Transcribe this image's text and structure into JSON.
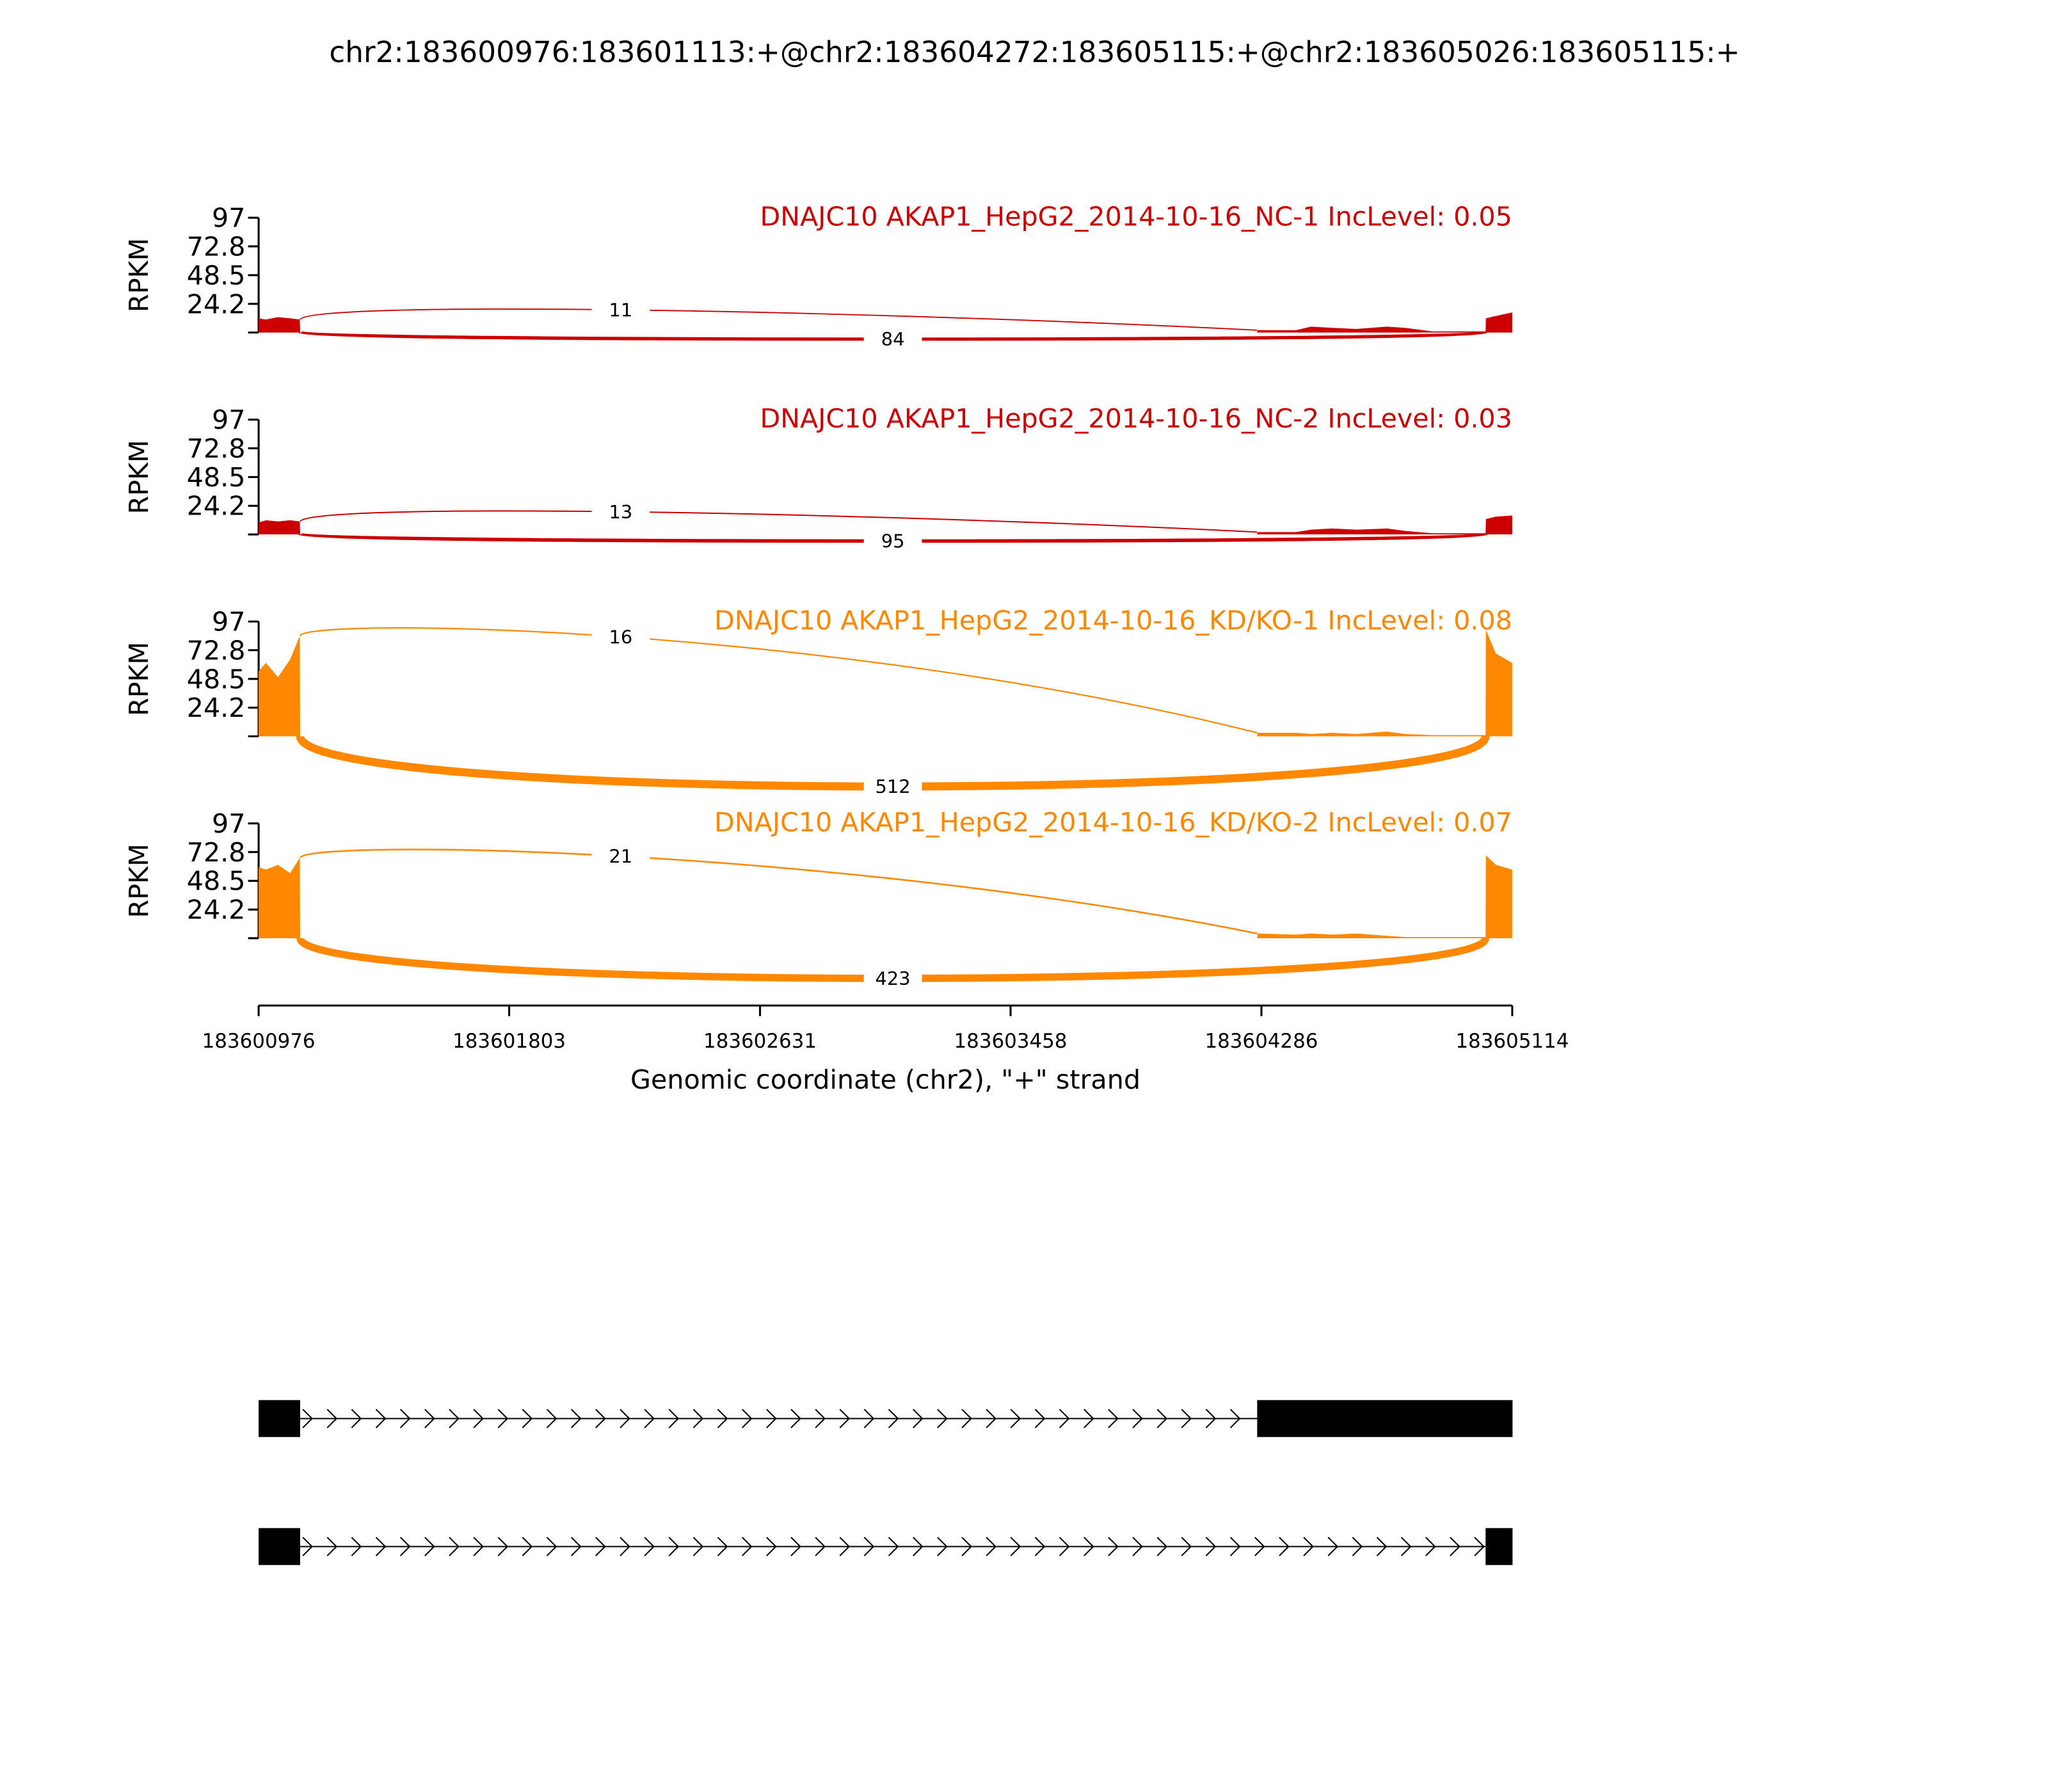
{
  "title": "chr2:183600976:183601113:+@chr2:183604272:183605115:+@chr2:183605026:183605115:+",
  "chart_data": [
    {
      "type": "sashimi",
      "title": "DNAJC10 AKAP1_HepG2_2014-10-16_NC-1 IncLevel: 0.05",
      "ylabel": "RPKM",
      "color": "#cc0000",
      "xlim": [
        183600976,
        183605114
      ],
      "ylim": [
        0,
        97
      ],
      "yticks": [
        24.2,
        48.5,
        72.8,
        97
      ],
      "x": [
        183600976,
        183601000,
        183601040,
        183601080,
        183601112,
        183601113,
        183604272,
        183604273,
        183604400,
        183604450,
        183604520,
        183604600,
        183604700,
        183604760,
        183604850,
        183605026,
        183605027,
        183605060,
        183605114
      ],
      "values": [
        12,
        11,
        13,
        12,
        11,
        0,
        0,
        2,
        2,
        5,
        4,
        3,
        5,
        4,
        1,
        1,
        12,
        14,
        17
      ],
      "junctions": [
        {
          "start": 183601113,
          "end": 183604272,
          "count": 11,
          "side": "above"
        },
        {
          "start": 183601113,
          "end": 183605026,
          "count": 84,
          "side": "below"
        }
      ]
    },
    {
      "type": "sashimi",
      "title": "DNAJC10 AKAP1_HepG2_2014-10-16_NC-2 IncLevel: 0.03",
      "ylabel": "RPKM",
      "color": "#cc0000",
      "xlim": [
        183600976,
        183605114
      ],
      "ylim": [
        0,
        97
      ],
      "yticks": [
        24.2,
        48.5,
        72.8,
        97
      ],
      "x": [
        183600976,
        183601000,
        183601040,
        183601080,
        183601112,
        183601113,
        183604272,
        183604273,
        183604400,
        183604450,
        183604520,
        183604600,
        183604700,
        183604760,
        183604850,
        183605026,
        183605027,
        183605060,
        183605114
      ],
      "values": [
        10,
        12,
        11,
        12,
        11,
        0,
        0,
        2,
        2,
        4,
        5,
        4,
        5,
        3,
        1,
        1,
        13,
        15,
        16
      ],
      "junctions": [
        {
          "start": 183601113,
          "end": 183604272,
          "count": 13,
          "side": "above"
        },
        {
          "start": 183601113,
          "end": 183605026,
          "count": 95,
          "side": "below"
        }
      ]
    },
    {
      "type": "sashimi",
      "title": "DNAJC10 AKAP1_HepG2_2014-10-16_KD/KO-1 IncLevel: 0.08",
      "ylabel": "RPKM",
      "color": "#ff8800",
      "xlim": [
        183600976,
        183605114
      ],
      "ylim": [
        0,
        97
      ],
      "yticks": [
        24.2,
        48.5,
        72.8,
        97
      ],
      "x": [
        183600976,
        183601000,
        183601040,
        183601080,
        183601112,
        183601113,
        183604272,
        183604273,
        183604400,
        183604450,
        183604520,
        183604600,
        183604700,
        183604760,
        183604850,
        183605026,
        183605027,
        183605060,
        183605114
      ],
      "values": [
        55,
        62,
        50,
        65,
        85,
        0,
        0,
        3,
        3,
        2,
        3,
        2,
        4,
        2,
        1,
        1,
        90,
        70,
        62
      ],
      "junctions": [
        {
          "start": 183601113,
          "end": 183604272,
          "count": 16,
          "side": "above"
        },
        {
          "start": 183601113,
          "end": 183605026,
          "count": 512,
          "side": "below"
        }
      ]
    },
    {
      "type": "sashimi",
      "title": "DNAJC10 AKAP1_HepG2_2014-10-16_KD/KO-2 IncLevel: 0.07",
      "ylabel": "RPKM",
      "color": "#ff8800",
      "xlim": [
        183600976,
        183605114
      ],
      "ylim": [
        0,
        97
      ],
      "yticks": [
        24.2,
        48.5,
        72.8,
        97
      ],
      "x": [
        183600976,
        183601000,
        183601040,
        183601080,
        183601112,
        183601113,
        183604272,
        183604273,
        183604400,
        183604450,
        183604520,
        183604600,
        183604700,
        183604760,
        183604850,
        183605026,
        183605027,
        183605060,
        183605114
      ],
      "values": [
        60,
        58,
        62,
        55,
        68,
        0,
        0,
        4,
        3,
        4,
        3,
        4,
        2,
        1,
        1,
        1,
        70,
        62,
        58
      ],
      "junctions": [
        {
          "start": 183601113,
          "end": 183604272,
          "count": 21,
          "side": "above"
        },
        {
          "start": 183601113,
          "end": 183605026,
          "count": 423,
          "side": "below"
        }
      ],
      "xticks": [
        183600976,
        183601803,
        183602631,
        183603458,
        183604286,
        183605114
      ],
      "xlabel": "Genomic coordinate (chr2), \"+\" strand"
    }
  ],
  "gene_models": {
    "xlim": [
      183600976,
      183605114
    ],
    "transcripts": [
      {
        "exons": [
          [
            183600976,
            183601113
          ],
          [
            183604272,
            183605115
          ]
        ]
      },
      {
        "exons": [
          [
            183600976,
            183601113
          ],
          [
            183605026,
            183605115
          ]
        ]
      }
    ]
  }
}
